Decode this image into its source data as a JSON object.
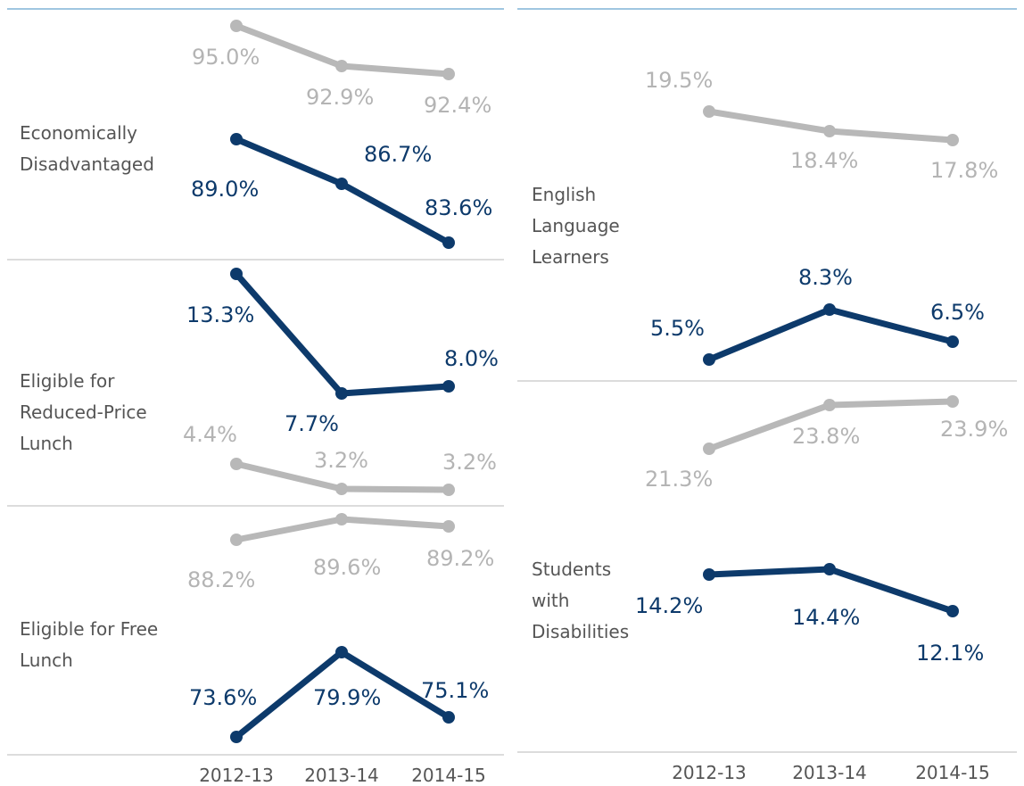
{
  "colors": {
    "primary": "#0d3a6b",
    "secondary": "#b8b8b8",
    "secondary_text": "#b4b4b4"
  },
  "chart_data": [
    {
      "type": "line",
      "panel": "left",
      "title": "Economically Disadvantaged",
      "categories": [
        "2012-13",
        "2013-14",
        "2014-15"
      ],
      "series": [
        {
          "role": "secondary",
          "values": [
            95.0,
            92.9,
            92.4
          ],
          "labels": [
            "95.0%",
            "92.9%",
            "92.4%"
          ]
        },
        {
          "role": "primary",
          "values": [
            89.0,
            86.7,
            83.6
          ],
          "labels": [
            "89.0%",
            "86.7%",
            "83.6%"
          ]
        }
      ]
    },
    {
      "type": "line",
      "panel": "left",
      "title": "Eligible for Reduced-Price Lunch",
      "categories": [
        "2012-13",
        "2013-14",
        "2014-15"
      ],
      "series": [
        {
          "role": "primary",
          "values": [
            13.3,
            7.7,
            8.0
          ],
          "labels": [
            "13.3%",
            "7.7%",
            "8.0%"
          ]
        },
        {
          "role": "secondary",
          "values": [
            4.4,
            3.2,
            3.2
          ],
          "labels": [
            "4.4%",
            "3.2%",
            "3.2%"
          ]
        }
      ]
    },
    {
      "type": "line",
      "panel": "left",
      "title": "Eligible for Free Lunch",
      "categories": [
        "2012-13",
        "2013-14",
        "2014-15"
      ],
      "series": [
        {
          "role": "secondary",
          "values": [
            88.2,
            89.6,
            89.2
          ],
          "labels": [
            "88.2%",
            "89.6%",
            "89.2%"
          ]
        },
        {
          "role": "primary",
          "values": [
            73.6,
            79.9,
            75.1
          ],
          "labels": [
            "73.6%",
            "79.9%",
            "75.1%"
          ]
        }
      ]
    },
    {
      "type": "line",
      "panel": "right",
      "title": "English Language Learners",
      "categories": [
        "2012-13",
        "2013-14",
        "2014-15"
      ],
      "series": [
        {
          "role": "secondary",
          "values": [
            19.5,
            18.4,
            17.8
          ],
          "labels": [
            "19.5%",
            "18.4%",
            "17.8%"
          ]
        },
        {
          "role": "primary",
          "values": [
            5.5,
            8.3,
            6.5
          ],
          "labels": [
            "5.5%",
            "8.3%",
            "6.5%"
          ]
        }
      ]
    },
    {
      "type": "line",
      "panel": "right",
      "title": "Students with Disabilities",
      "categories": [
        "2012-13",
        "2013-14",
        "2014-15"
      ],
      "series": [
        {
          "role": "secondary",
          "values": [
            21.3,
            23.8,
            23.9
          ],
          "labels": [
            "21.3%",
            "23.8%",
            "23.9%"
          ]
        },
        {
          "role": "primary",
          "values": [
            14.2,
            14.4,
            12.1
          ],
          "labels": [
            "14.2%",
            "14.4%",
            "12.1%"
          ]
        }
      ]
    }
  ]
}
